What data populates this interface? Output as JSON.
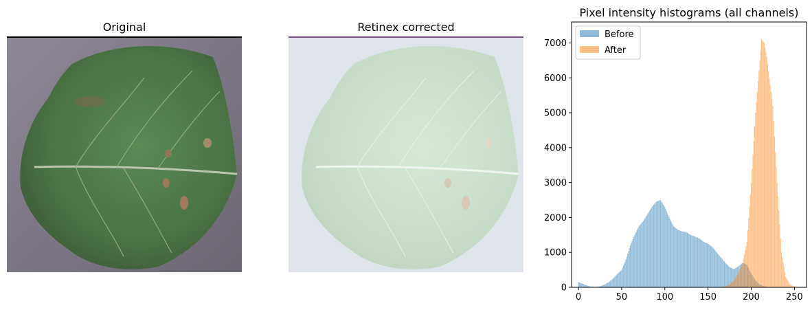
{
  "panels": {
    "original": {
      "title": "Original"
    },
    "corrected": {
      "title": "Retinex corrected"
    }
  },
  "colors": {
    "before": "#1f77b4",
    "after": "#ff7f0e",
    "leaf_original": "#4b7a45",
    "background_original": "#8a8290",
    "leaf_corrected": "#cfe2d2",
    "background_corrected": "#dde1e8"
  },
  "chart_data": {
    "type": "bar",
    "title": "Pixel intensity histograms (all channels)",
    "xlabel": "",
    "ylabel": "",
    "xlim": [
      -8,
      264
    ],
    "ylim": [
      0,
      7600
    ],
    "xticks": [
      0,
      50,
      100,
      150,
      200,
      250
    ],
    "yticks": [
      0,
      1000,
      2000,
      3000,
      4000,
      5000,
      6000,
      7000
    ],
    "grid": false,
    "legend": {
      "position": "top-left"
    },
    "series": [
      {
        "name": "Before",
        "color": "#1f77b4",
        "alpha": 0.5,
        "x": [
          0,
          5,
          10,
          15,
          20,
          25,
          30,
          35,
          40,
          45,
          50,
          55,
          60,
          65,
          70,
          75,
          80,
          85,
          90,
          95,
          100,
          105,
          110,
          115,
          120,
          125,
          130,
          135,
          140,
          145,
          150,
          155,
          160,
          165,
          170,
          175,
          180,
          185,
          190,
          195,
          200,
          205,
          210,
          215,
          220,
          225
        ],
        "y": [
          150,
          100,
          50,
          20,
          15,
          30,
          80,
          150,
          250,
          380,
          500,
          800,
          1200,
          1500,
          1750,
          1900,
          2100,
          2300,
          2450,
          2500,
          2300,
          2000,
          1750,
          1650,
          1600,
          1580,
          1500,
          1450,
          1400,
          1300,
          1250,
          1150,
          1000,
          850,
          700,
          580,
          520,
          600,
          700,
          650,
          400,
          200,
          80,
          30,
          10,
          5
        ]
      },
      {
        "name": "After",
        "color": "#ff7f0e",
        "alpha": 0.5,
        "x": [
          165,
          170,
          175,
          180,
          185,
          190,
          195,
          200,
          205,
          210,
          212,
          215,
          218,
          220,
          225,
          230,
          235,
          240,
          245,
          250,
          255
        ],
        "y": [
          10,
          30,
          80,
          200,
          400,
          700,
          1300,
          3000,
          5000,
          6500,
          7100,
          7000,
          6600,
          6200,
          5200,
          3000,
          1000,
          300,
          80,
          20,
          5
        ]
      }
    ]
  }
}
